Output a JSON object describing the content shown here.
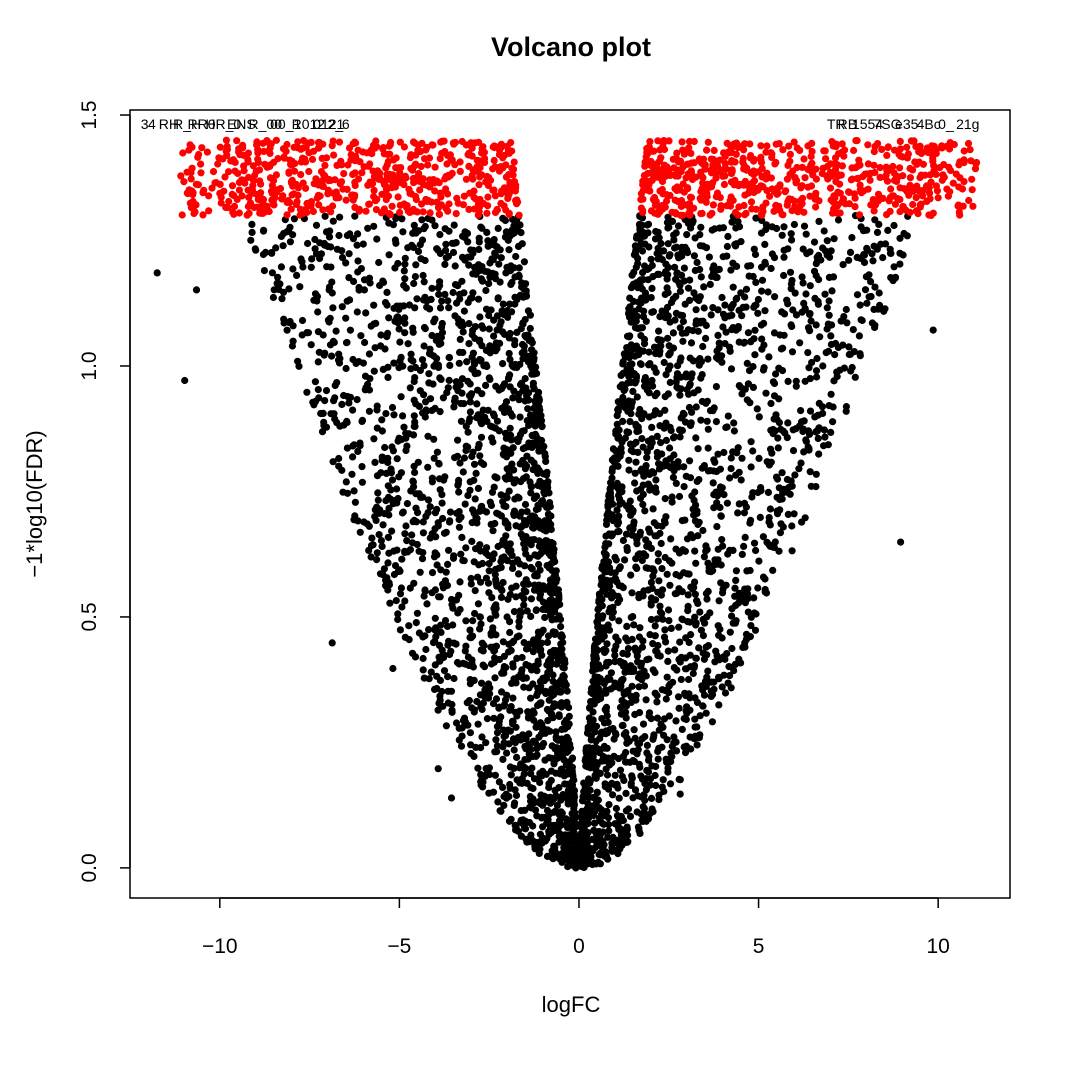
{
  "chart_data": {
    "type": "scatter",
    "title": "Volcano plot",
    "xlabel": "logFC",
    "ylabel": "−1*log10(FDR)",
    "xlim": [
      -12.5,
      12.0
    ],
    "ylim": [
      -0.06,
      1.51
    ],
    "x_ticks": [
      -10,
      -5,
      0,
      5,
      10
    ],
    "x_tick_labels": [
      "−10",
      "−5",
      "0",
      "5",
      "10"
    ],
    "y_ticks": [
      0.0,
      0.5,
      1.0,
      1.5
    ],
    "y_tick_labels": [
      "0.0",
      "0.5",
      "1.0",
      "1.5"
    ],
    "significance_threshold": 1.3,
    "colors": {
      "significant": "#ff0000",
      "not_significant": "#000000"
    },
    "gene_label_groups": [
      {
        "x": -12.2,
        "y": 1.5,
        "text": "3",
        "anchor": "start"
      },
      {
        "x": -12.0,
        "y": 1.5,
        "text": "4",
        "anchor": "start"
      },
      {
        "x": -11.7,
        "y": 1.5,
        "text": "RH",
        "anchor": "start"
      },
      {
        "x": -11.3,
        "y": 1.5,
        "text": "R_H",
        "anchor": "start"
      },
      {
        "x": -10.9,
        "y": 1.5,
        "text": "RR0",
        "anchor": "start"
      },
      {
        "x": -10.4,
        "y": 1.5,
        "text": "HR_0",
        "anchor": "start"
      },
      {
        "x": -9.8,
        "y": 1.5,
        "text": "ENS",
        "anchor": "start"
      },
      {
        "x": -9.2,
        "y": 1.5,
        "text": "R_00",
        "anchor": "start"
      },
      {
        "x": -8.6,
        "y": 1.5,
        "text": "00_1",
        "anchor": "start"
      },
      {
        "x": -8.0,
        "y": 1.5,
        "text": "R012",
        "anchor": "start"
      },
      {
        "x": -7.4,
        "y": 1.5,
        "text": "0121",
        "anchor": "start"
      },
      {
        "x": -7.0,
        "y": 1.5,
        "text": "2_",
        "anchor": "start"
      },
      {
        "x": -6.6,
        "y": 1.5,
        "text": "6",
        "anchor": "start"
      },
      {
        "x": 6.9,
        "y": 1.5,
        "text": "TR",
        "anchor": "start"
      },
      {
        "x": 7.2,
        "y": 1.5,
        "text": "RB",
        "anchor": "start"
      },
      {
        "x": 7.6,
        "y": 1.5,
        "text": "1554",
        "anchor": "start"
      },
      {
        "x": 8.2,
        "y": 1.5,
        "text": "7SG",
        "anchor": "start"
      },
      {
        "x": 8.8,
        "y": 1.5,
        "text": "e35",
        "anchor": "start"
      },
      {
        "x": 9.4,
        "y": 1.5,
        "text": "4Bc",
        "anchor": "start"
      },
      {
        "x": 10.0,
        "y": 1.5,
        "text": "0_",
        "anchor": "start"
      },
      {
        "x": 10.5,
        "y": 1.5,
        "text": "21g",
        "anchor": "start"
      }
    ],
    "background_point_model": {
      "description_note": "",
      "n_points": 26000,
      "spread_coefficient": 3.0,
      "spread_power": 0.55,
      "min_abs_logfc": 0.02,
      "max_fdr_value": 1.45
    }
  }
}
